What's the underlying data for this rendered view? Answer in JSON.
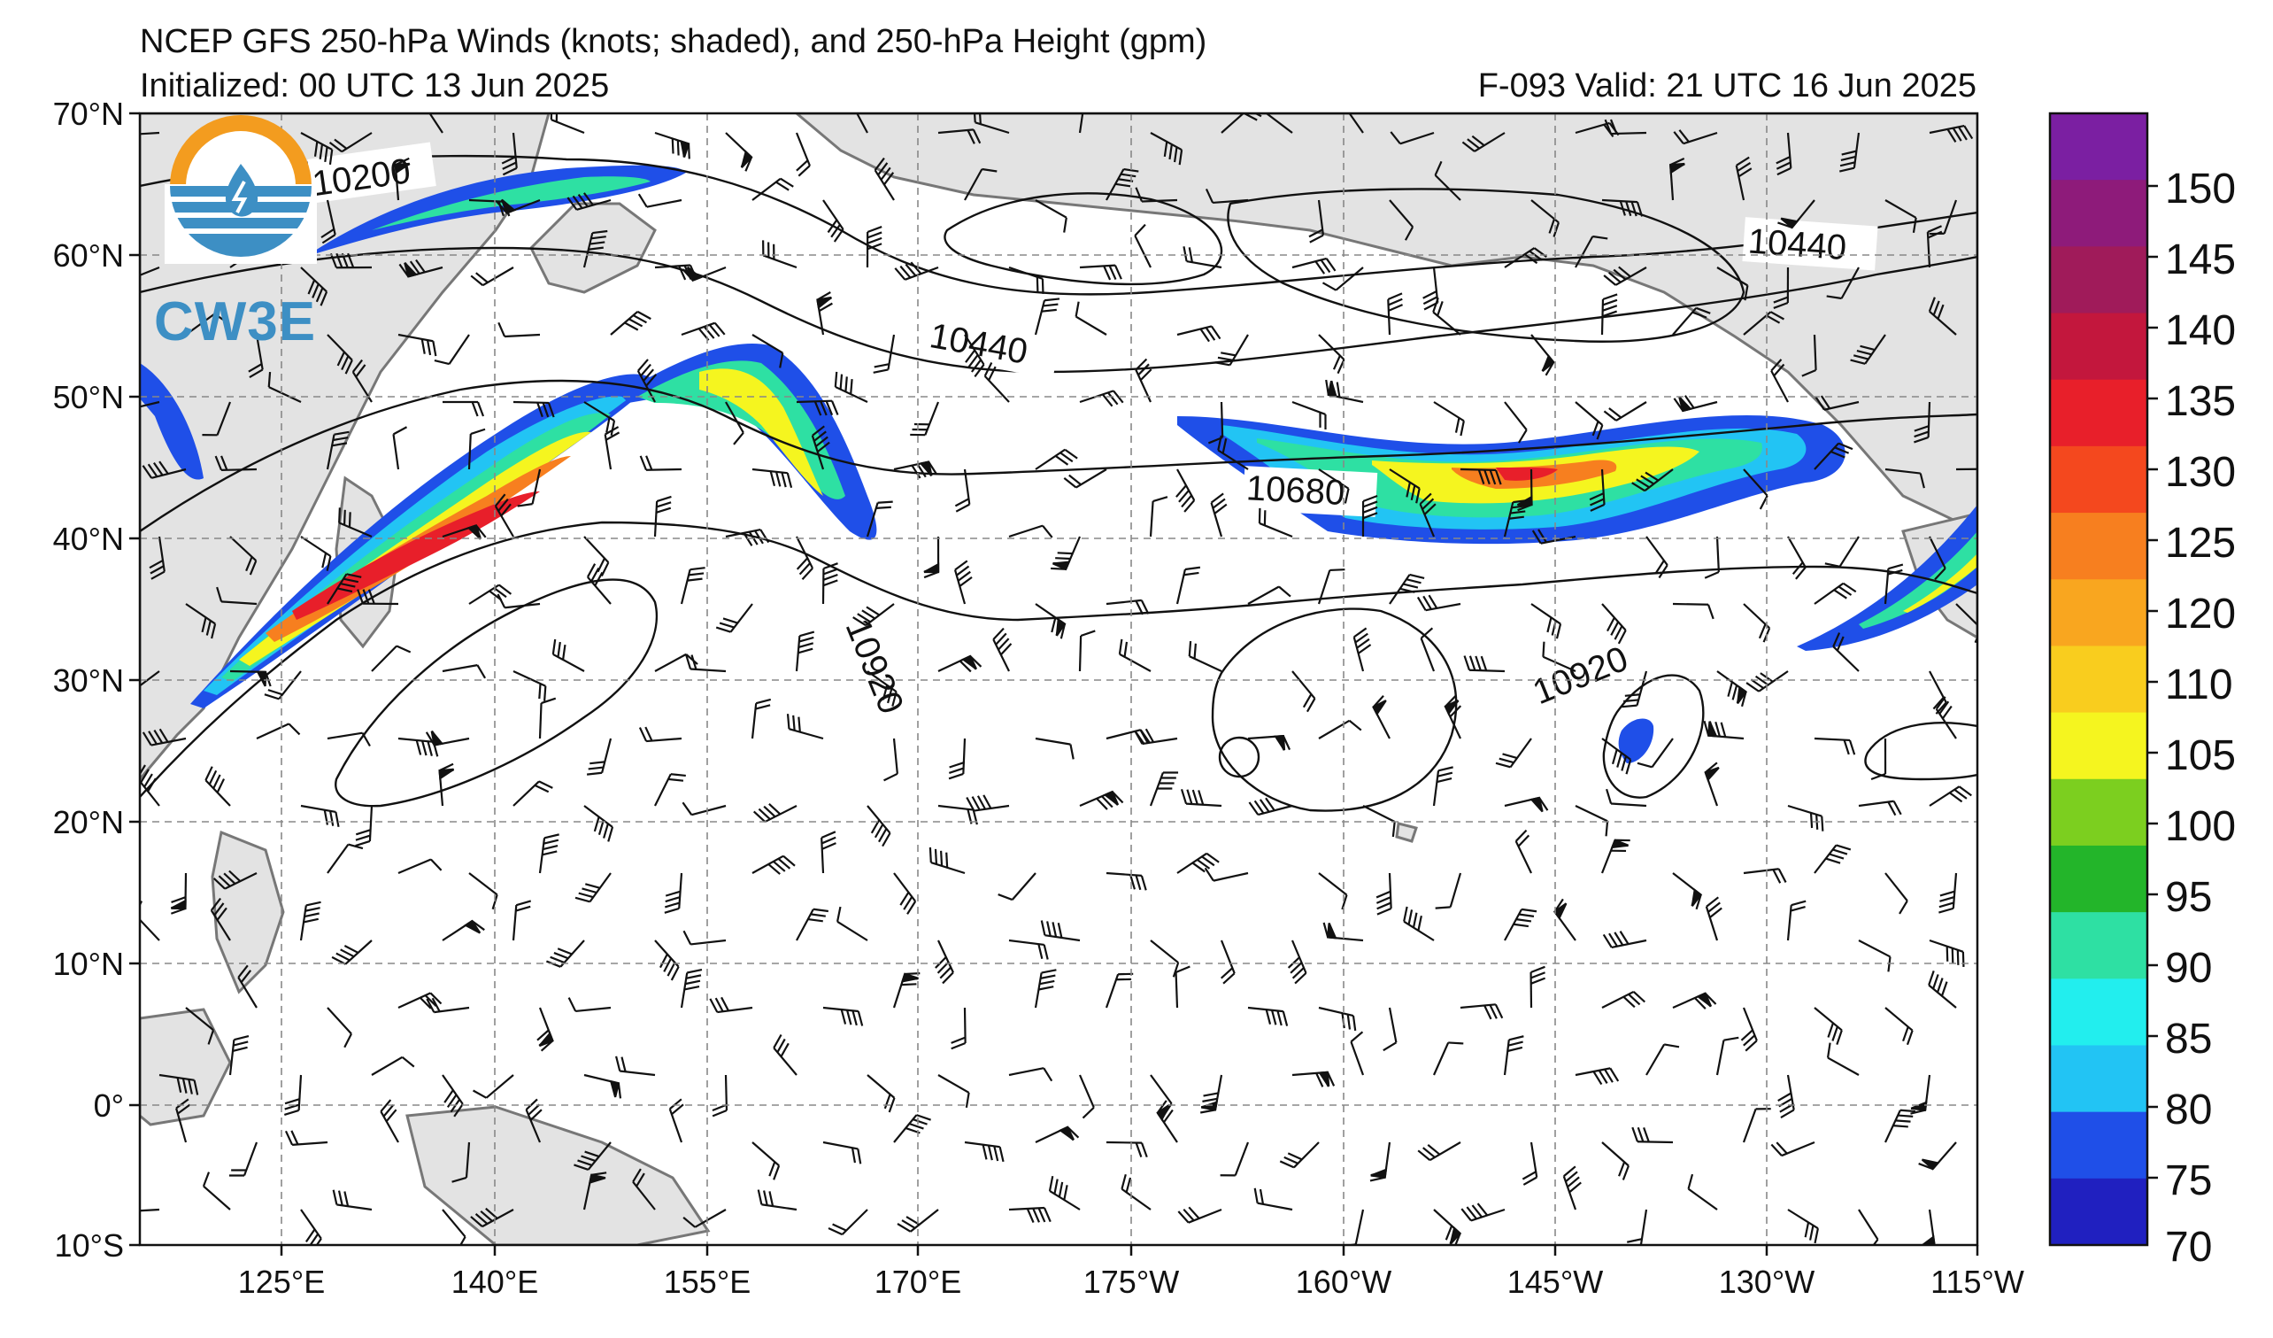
{
  "title": "NCEP GFS 250-hPa Winds (knots; shaded), and 250-hPa Height (gpm)",
  "initialized": "Initialized: 00 UTC 13 Jun 2025",
  "valid": "F-093  Valid: 21 UTC 16 Jun 2025",
  "logo": {
    "text": "CW3E"
  },
  "lat_labels": [
    "70°N",
    "60°N",
    "50°N",
    "40°N",
    "30°N",
    "20°N",
    "10°N",
    "0°",
    "10°S"
  ],
  "lon_labels": [
    "125°E",
    "140°E",
    "155°E",
    "170°E",
    "175°W",
    "160°W",
    "145°W",
    "130°W",
    "115°W"
  ],
  "contour_labels": [
    "10200",
    "10440",
    "10440",
    "10680",
    "10920",
    "10920"
  ],
  "colorbar": {
    "ticks": [
      "150",
      "145",
      "140",
      "135",
      "130",
      "125",
      "120",
      "110",
      "105",
      "100",
      "95",
      "90",
      "85",
      "80",
      "75",
      "70"
    ],
    "colors": [
      "#7b1fa2",
      "#8e1b7a",
      "#a01b5a",
      "#c3173d",
      "#e81f2a",
      "#f4481e",
      "#f77f1f",
      "#f9a61f",
      "#f9cd1e",
      "#f5f51f",
      "#7ccf1f",
      "#23b52a",
      "#2ee0a3",
      "#22eeee",
      "#22c4f4",
      "#1f4fe8",
      "#2020c0"
    ]
  },
  "chart_data": {
    "type": "map",
    "domain": {
      "lon_range": [
        "115°E",
        "115°W"
      ],
      "lat_range": [
        "10°S",
        "70°N"
      ]
    },
    "height_contours_gpm": [
      10200,
      10440,
      10680,
      10920
    ],
    "wind_shading_knots": [
      70,
      75,
      80,
      85,
      90,
      95,
      100,
      105,
      110,
      120,
      125,
      130,
      135,
      140,
      145,
      150
    ]
  }
}
